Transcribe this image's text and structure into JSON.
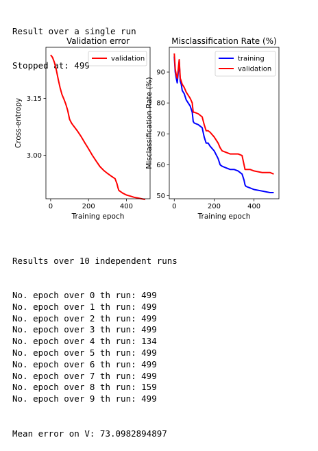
{
  "header": {
    "line1": "Result over a single run",
    "line2": "Stopped at: 499"
  },
  "results": {
    "title": "Results over 10 independent runs",
    "lines": [
      "No. epoch over 0 th run: 499",
      "No. epoch over 1 th run: 499",
      "No. epoch over 2 th run: 499",
      "No. epoch over 3 th run: 499",
      "No. epoch over 4 th run: 134",
      "No. epoch over 5 th run: 499",
      "No. epoch over 6 th run: 499",
      "No. epoch over 7 th run: 499",
      "No. epoch over 8 th run: 159",
      "No. epoch over 9 th run: 499"
    ],
    "mean": "Mean error on V: 73.0982894897"
  },
  "chart_data": [
    {
      "type": "line",
      "title": "Validation error",
      "xlabel": "Training epoch",
      "ylabel": "Cross-entropy",
      "xlim": [
        -25,
        525
      ],
      "ylim": [
        2.885,
        3.285
      ],
      "xticks": [
        0,
        200,
        400
      ],
      "yticks": [
        3.0,
        3.15
      ],
      "ytick_labels": [
        "3.00",
        "3.15"
      ],
      "legend_position": "upper right",
      "grid": false,
      "series": [
        {
          "name": "validation",
          "color": "#ff0000",
          "x": [
            0,
            10,
            20,
            30,
            40,
            50,
            60,
            70,
            80,
            90,
            100,
            110,
            120,
            140,
            160,
            180,
            200,
            220,
            240,
            260,
            280,
            300,
            320,
            340,
            350,
            355,
            360,
            380,
            400,
            420,
            440,
            460,
            480,
            499
          ],
          "y": [
            3.265,
            3.258,
            3.245,
            3.225,
            3.2,
            3.178,
            3.16,
            3.148,
            3.135,
            3.118,
            3.095,
            3.085,
            3.078,
            3.065,
            3.05,
            3.033,
            3.017,
            3.0,
            2.985,
            2.97,
            2.96,
            2.952,
            2.945,
            2.938,
            2.925,
            2.915,
            2.907,
            2.9,
            2.895,
            2.892,
            2.889,
            2.887,
            2.885,
            2.883
          ]
        }
      ]
    },
    {
      "type": "line",
      "title": "Misclassification Rate (%)",
      "xlabel": "Training epoch",
      "ylabel": "Misclassification Rate (%)",
      "xlim": [
        -25,
        525
      ],
      "ylim": [
        49,
        98
      ],
      "xticks": [
        0,
        200,
        400
      ],
      "yticks": [
        50,
        60,
        70,
        80,
        90
      ],
      "ytick_labels": [
        "50",
        "60",
        "70",
        "80",
        "90"
      ],
      "legend_position": "upper right",
      "grid": false,
      "series": [
        {
          "name": "training",
          "color": "#0000ff",
          "x": [
            0,
            5,
            10,
            15,
            20,
            25,
            30,
            35,
            40,
            50,
            60,
            70,
            80,
            90,
            95,
            100,
            120,
            140,
            150,
            160,
            170,
            180,
            200,
            220,
            230,
            240,
            260,
            280,
            300,
            320,
            340,
            350,
            355,
            360,
            380,
            400,
            440,
            480,
            499
          ],
          "y": [
            95,
            90,
            88,
            86.5,
            90,
            93.5,
            87,
            86,
            84,
            83,
            81,
            80,
            79,
            77,
            74,
            73.5,
            73,
            72,
            69,
            67,
            67,
            66,
            64.5,
            62,
            60,
            59.5,
            59,
            58.5,
            58.5,
            58,
            57,
            55,
            53.5,
            53,
            52.5,
            52,
            51.5,
            51,
            51
          ]
        },
        {
          "name": "validation",
          "color": "#ff0000",
          "x": [
            0,
            5,
            10,
            15,
            20,
            25,
            30,
            35,
            40,
            50,
            60,
            70,
            80,
            90,
            95,
            100,
            120,
            140,
            150,
            160,
            170,
            180,
            200,
            220,
            230,
            240,
            260,
            280,
            300,
            320,
            340,
            350,
            355,
            360,
            380,
            400,
            440,
            480,
            499
          ],
          "y": [
            96,
            91,
            89,
            88,
            91,
            94,
            88,
            87,
            86,
            85,
            83.5,
            82.5,
            81.5,
            80,
            77,
            77,
            76.5,
            75.5,
            73,
            71,
            71,
            70.5,
            69,
            67,
            65.5,
            64.5,
            64,
            63.5,
            63.5,
            63.5,
            63,
            60,
            58.5,
            58.5,
            58.5,
            58,
            57.5,
            57.5,
            57
          ]
        }
      ]
    }
  ]
}
